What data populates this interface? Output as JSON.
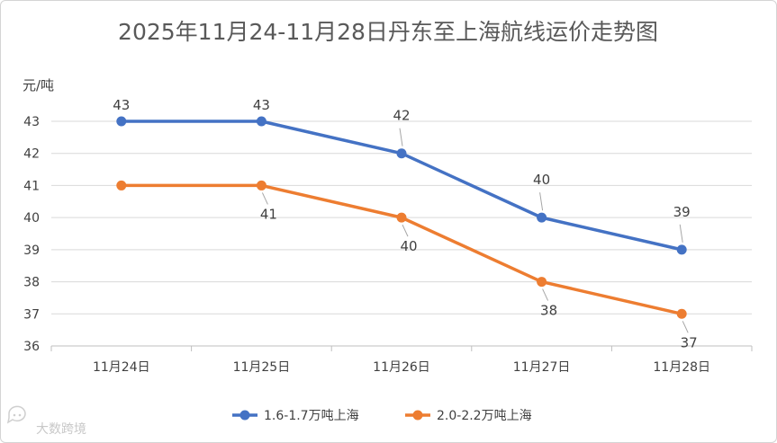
{
  "chart_data": {
    "type": "line",
    "title": "2025年11月24-11月28日丹东至上海航线运价走势图",
    "ylabel": "元/吨",
    "xlabel": "",
    "categories": [
      "11月24日",
      "11月25日",
      "11月26日",
      "11月27日",
      "11月28日"
    ],
    "yticks": [
      "36",
      "37",
      "38",
      "39",
      "40",
      "41",
      "42",
      "43"
    ],
    "ylim": [
      36,
      43
    ],
    "grid": true,
    "legend_position": "bottom",
    "series": [
      {
        "name": "1.6-1.7万吨上海",
        "color": "#4472C4",
        "values": [
          43,
          43,
          42,
          40,
          39
        ]
      },
      {
        "name": "2.0-2.2万吨上海",
        "color": "#ED7D31",
        "values": [
          41,
          41,
          40,
          38,
          37
        ]
      }
    ]
  },
  "watermark": {
    "text": "大数跨境",
    "icon": "chat-bubble-icon"
  }
}
